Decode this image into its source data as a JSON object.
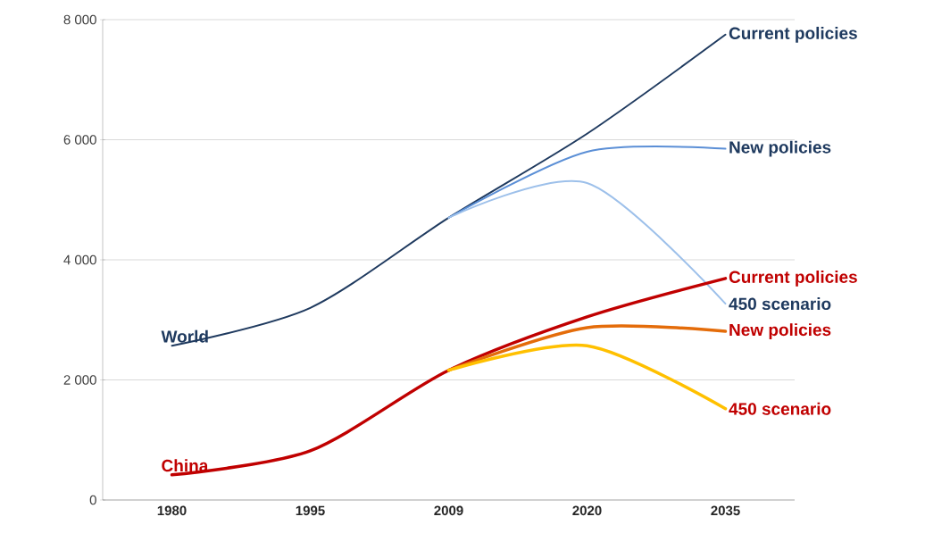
{
  "chart_data": {
    "type": "line",
    "categories": [
      "1980",
      "1995",
      "2009",
      "2020",
      "2035"
    ],
    "series": [
      {
        "name": "Current policies",
        "color": "#1f3a5f",
        "values": [
          2570,
          3200,
          4700,
          6100,
          7750
        ]
      },
      {
        "name": "New policies",
        "color": "#5b8fd6",
        "values": [
          null,
          null,
          4700,
          5800,
          5850
        ]
      },
      {
        "name": "450 scenario",
        "color": "#9dc0ea",
        "values": [
          null,
          null,
          4700,
          5280,
          3270
        ]
      },
      {
        "name": "Current policies",
        "color": "#c00000",
        "values": [
          420,
          820,
          2160,
          3050,
          3690
        ]
      },
      {
        "name": "New policies",
        "color": "#e46c0a",
        "values": [
          null,
          null,
          2160,
          2870,
          2810
        ]
      },
      {
        "name": "450 scenario",
        "color": "#ffc000",
        "values": [
          null,
          null,
          2160,
          2570,
          1520
        ]
      }
    ],
    "annotations": [
      "World",
      "China"
    ],
    "ylim": [
      0,
      8000
    ],
    "yticks": [
      0,
      {
        "value": 2000,
        "label": "2 000"
      },
      {
        "value": 4000,
        "label": "4 000"
      },
      {
        "value": 6000,
        "label": "6 000"
      },
      {
        "value": 8000,
        "label": "8 000"
      }
    ],
    "grid": "y",
    "legend": false,
    "line_style": "solid",
    "marker": "none"
  }
}
